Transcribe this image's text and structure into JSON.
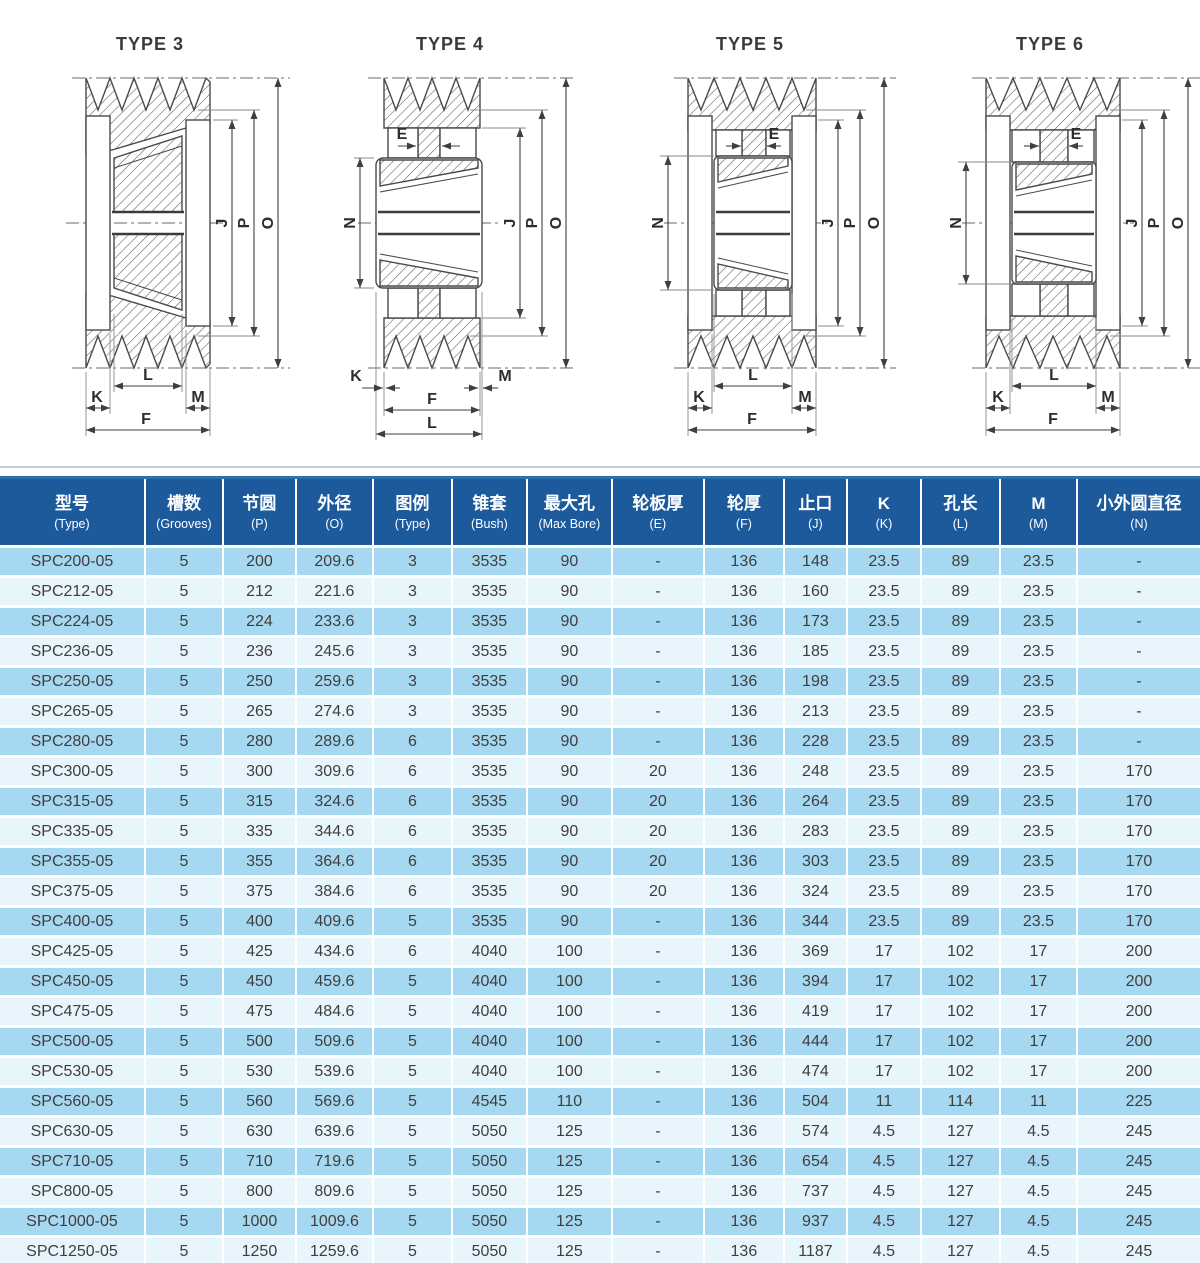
{
  "diagrams": [
    {
      "title": "TYPE 3",
      "dims": {
        "J": "J",
        "P": "P",
        "O": "O",
        "L": "L",
        "K": "K",
        "M": "M",
        "F": "F"
      }
    },
    {
      "title": "TYPE 4",
      "dims": {
        "E": "E",
        "N": "N",
        "J": "J",
        "P": "P",
        "O": "O",
        "K": "K",
        "M": "M",
        "F": "F",
        "L": "L"
      }
    },
    {
      "title": "TYPE 5",
      "dims": {
        "E": "E",
        "N": "N",
        "J": "J",
        "P": "P",
        "O": "O",
        "L": "L",
        "K": "K",
        "M": "M",
        "F": "F"
      }
    },
    {
      "title": "TYPE 6",
      "dims": {
        "E": "E",
        "N": "N",
        "J": "J",
        "P": "P",
        "O": "O",
        "L": "L",
        "K": "K",
        "M": "M",
        "F": "F"
      }
    }
  ],
  "table": {
    "columns": [
      {
        "zh": "型号",
        "en": "(Type)"
      },
      {
        "zh": "槽数",
        "en": "(Grooves)"
      },
      {
        "zh": "节圆",
        "en": "(P)"
      },
      {
        "zh": "外径",
        "en": "(O)"
      },
      {
        "zh": "图例",
        "en": "(Type)"
      },
      {
        "zh": "锥套",
        "en": "(Bush)"
      },
      {
        "zh": "最大孔",
        "en": "(Max Bore)"
      },
      {
        "zh": "轮板厚",
        "en": "(E)"
      },
      {
        "zh": "轮厚",
        "en": "(F)"
      },
      {
        "zh": "止口",
        "en": "(J)"
      },
      {
        "zh": "K",
        "en": "(K)"
      },
      {
        "zh": "孔长",
        "en": "(L)"
      },
      {
        "zh": "M",
        "en": "(M)"
      },
      {
        "zh": "小外圆直径",
        "en": "(N)"
      }
    ],
    "rows": [
      [
        "SPC200-05",
        "5",
        "200",
        "209.6",
        "3",
        "3535",
        "90",
        "-",
        "136",
        "148",
        "23.5",
        "89",
        "23.5",
        "-"
      ],
      [
        "SPC212-05",
        "5",
        "212",
        "221.6",
        "3",
        "3535",
        "90",
        "-",
        "136",
        "160",
        "23.5",
        "89",
        "23.5",
        "-"
      ],
      [
        "SPC224-05",
        "5",
        "224",
        "233.6",
        "3",
        "3535",
        "90",
        "-",
        "136",
        "173",
        "23.5",
        "89",
        "23.5",
        "-"
      ],
      [
        "SPC236-05",
        "5",
        "236",
        "245.6",
        "3",
        "3535",
        "90",
        "-",
        "136",
        "185",
        "23.5",
        "89",
        "23.5",
        "-"
      ],
      [
        "SPC250-05",
        "5",
        "250",
        "259.6",
        "3",
        "3535",
        "90",
        "-",
        "136",
        "198",
        "23.5",
        "89",
        "23.5",
        "-"
      ],
      [
        "SPC265-05",
        "5",
        "265",
        "274.6",
        "3",
        "3535",
        "90",
        "-",
        "136",
        "213",
        "23.5",
        "89",
        "23.5",
        "-"
      ],
      [
        "SPC280-05",
        "5",
        "280",
        "289.6",
        "6",
        "3535",
        "90",
        "-",
        "136",
        "228",
        "23.5",
        "89",
        "23.5",
        "-"
      ],
      [
        "SPC300-05",
        "5",
        "300",
        "309.6",
        "6",
        "3535",
        "90",
        "20",
        "136",
        "248",
        "23.5",
        "89",
        "23.5",
        "170"
      ],
      [
        "SPC315-05",
        "5",
        "315",
        "324.6",
        "6",
        "3535",
        "90",
        "20",
        "136",
        "264",
        "23.5",
        "89",
        "23.5",
        "170"
      ],
      [
        "SPC335-05",
        "5",
        "335",
        "344.6",
        "6",
        "3535",
        "90",
        "20",
        "136",
        "283",
        "23.5",
        "89",
        "23.5",
        "170"
      ],
      [
        "SPC355-05",
        "5",
        "355",
        "364.6",
        "6",
        "3535",
        "90",
        "20",
        "136",
        "303",
        "23.5",
        "89",
        "23.5",
        "170"
      ],
      [
        "SPC375-05",
        "5",
        "375",
        "384.6",
        "6",
        "3535",
        "90",
        "20",
        "136",
        "324",
        "23.5",
        "89",
        "23.5",
        "170"
      ],
      [
        "SPC400-05",
        "5",
        "400",
        "409.6",
        "5",
        "3535",
        "90",
        "-",
        "136",
        "344",
        "23.5",
        "89",
        "23.5",
        "170"
      ],
      [
        "SPC425-05",
        "5",
        "425",
        "434.6",
        "6",
        "4040",
        "100",
        "-",
        "136",
        "369",
        "17",
        "102",
        "17",
        "200"
      ],
      [
        "SPC450-05",
        "5",
        "450",
        "459.6",
        "5",
        "4040",
        "100",
        "-",
        "136",
        "394",
        "17",
        "102",
        "17",
        "200"
      ],
      [
        "SPC475-05",
        "5",
        "475",
        "484.6",
        "5",
        "4040",
        "100",
        "-",
        "136",
        "419",
        "17",
        "102",
        "17",
        "200"
      ],
      [
        "SPC500-05",
        "5",
        "500",
        "509.6",
        "5",
        "4040",
        "100",
        "-",
        "136",
        "444",
        "17",
        "102",
        "17",
        "200"
      ],
      [
        "SPC530-05",
        "5",
        "530",
        "539.6",
        "5",
        "4040",
        "100",
        "-",
        "136",
        "474",
        "17",
        "102",
        "17",
        "200"
      ],
      [
        "SPC560-05",
        "5",
        "560",
        "569.6",
        "5",
        "4545",
        "110",
        "-",
        "136",
        "504",
        "11",
        "114",
        "11",
        "225"
      ],
      [
        "SPC630-05",
        "5",
        "630",
        "639.6",
        "5",
        "5050",
        "125",
        "-",
        "136",
        "574",
        "4.5",
        "127",
        "4.5",
        "245"
      ],
      [
        "SPC710-05",
        "5",
        "710",
        "719.6",
        "5",
        "5050",
        "125",
        "-",
        "136",
        "654",
        "4.5",
        "127",
        "4.5",
        "245"
      ],
      [
        "SPC800-05",
        "5",
        "800",
        "809.6",
        "5",
        "5050",
        "125",
        "-",
        "136",
        "737",
        "4.5",
        "127",
        "4.5",
        "245"
      ],
      [
        "SPC1000-05",
        "5",
        "1000",
        "1009.6",
        "5",
        "5050",
        "125",
        "-",
        "136",
        "937",
        "4.5",
        "127",
        "4.5",
        "245"
      ],
      [
        "SPC1250-05",
        "5",
        "1250",
        "1259.6",
        "5",
        "5050",
        "125",
        "-",
        "136",
        "1187",
        "4.5",
        "127",
        "4.5",
        "245"
      ]
    ]
  },
  "colors": {
    "header_bg": "#1c5a9c",
    "header_top_edge": "#2f6fae",
    "row_alt_a": "#a7d8f1",
    "row_alt_b": "#e9f5fc",
    "cell_text": "#3e3e3e"
  }
}
